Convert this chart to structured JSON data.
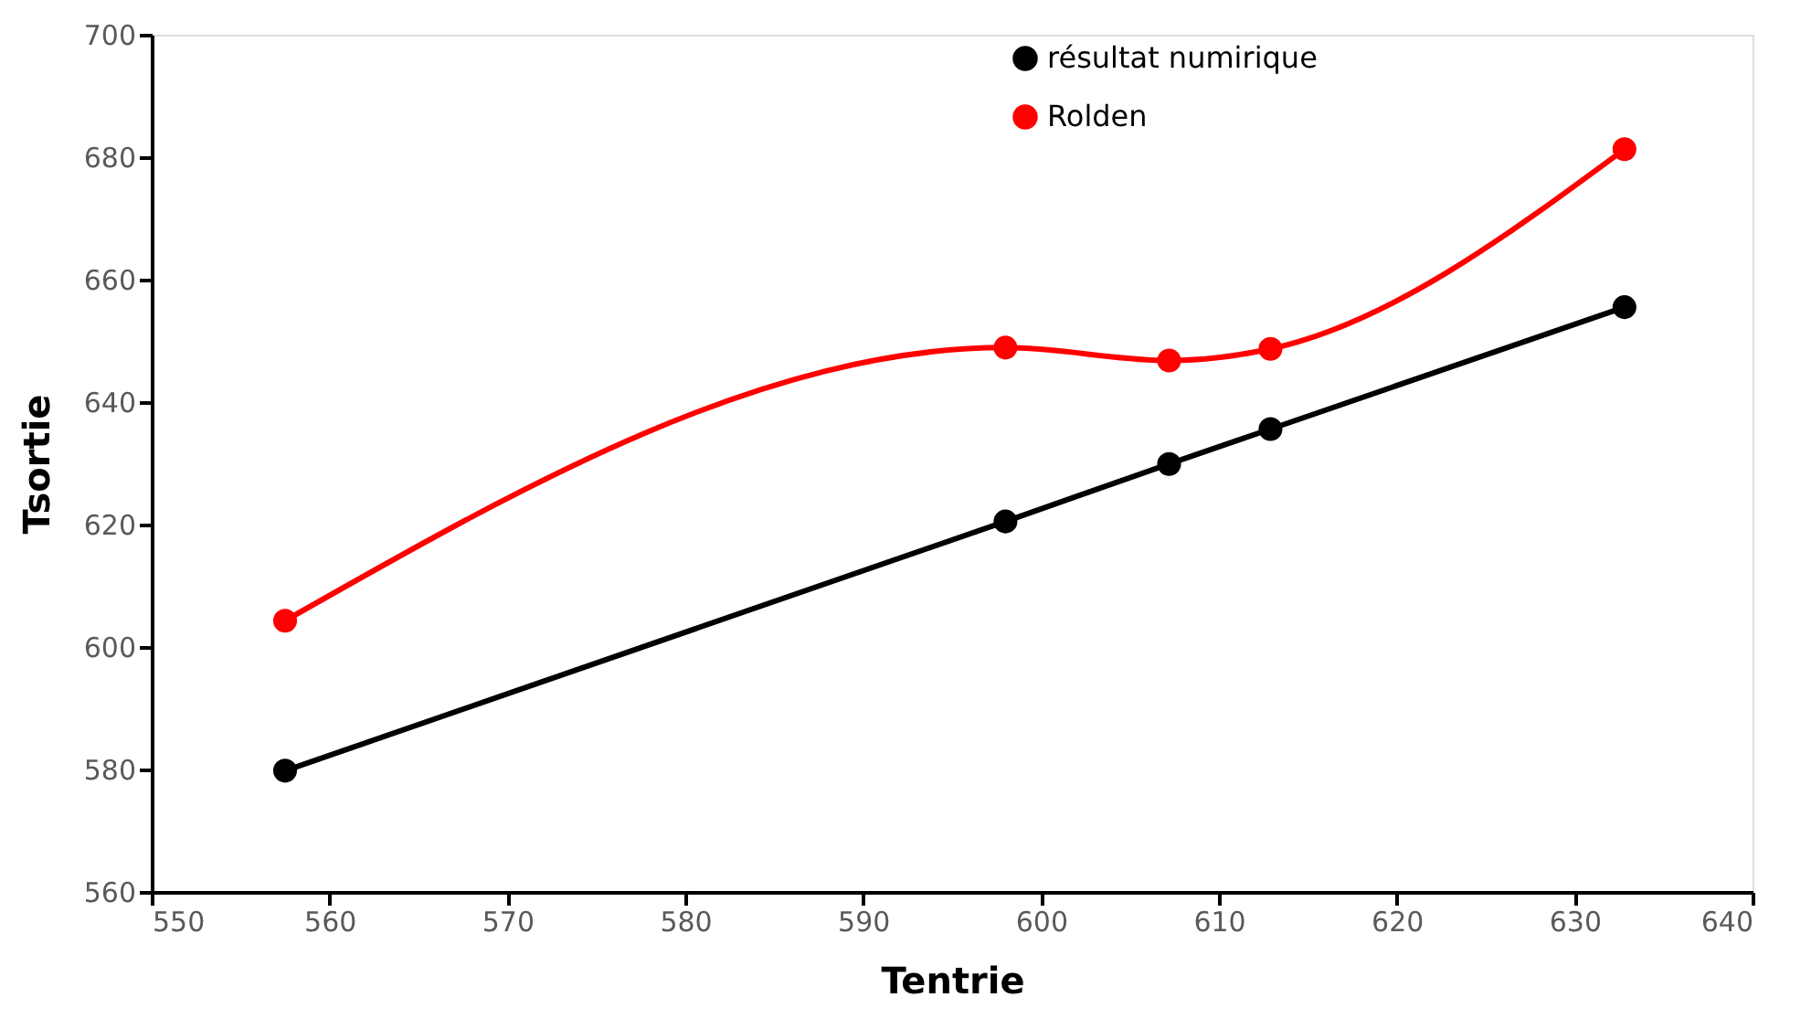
{
  "chart_data": {
    "type": "line",
    "xlabel": "Tentrie",
    "ylabel": "Tsortie",
    "xlim": [
      550,
      640
    ],
    "xticks": [
      550,
      560,
      570,
      580,
      590,
      600,
      610,
      620,
      630,
      640
    ],
    "ylim": [
      560,
      700
    ],
    "yticks": [
      560,
      580,
      600,
      620,
      640,
      660,
      680,
      700
    ],
    "grid": false,
    "legend": "top right",
    "marker": "circle",
    "line_style": "solid",
    "series": [
      {
        "name": "résultat numirique",
        "color": "#000000",
        "x": [
          557.5,
          598.0,
          607.2,
          612.9,
          632.8
        ],
        "values": [
          579.8,
          620.5,
          629.9,
          635.6,
          655.5
        ]
      },
      {
        "name": "Rolden",
        "color": "#ff0000",
        "x": [
          557.5,
          598.0,
          607.2,
          612.9,
          632.8
        ],
        "values": [
          604.3,
          648.9,
          646.8,
          648.7,
          681.3
        ]
      }
    ]
  }
}
